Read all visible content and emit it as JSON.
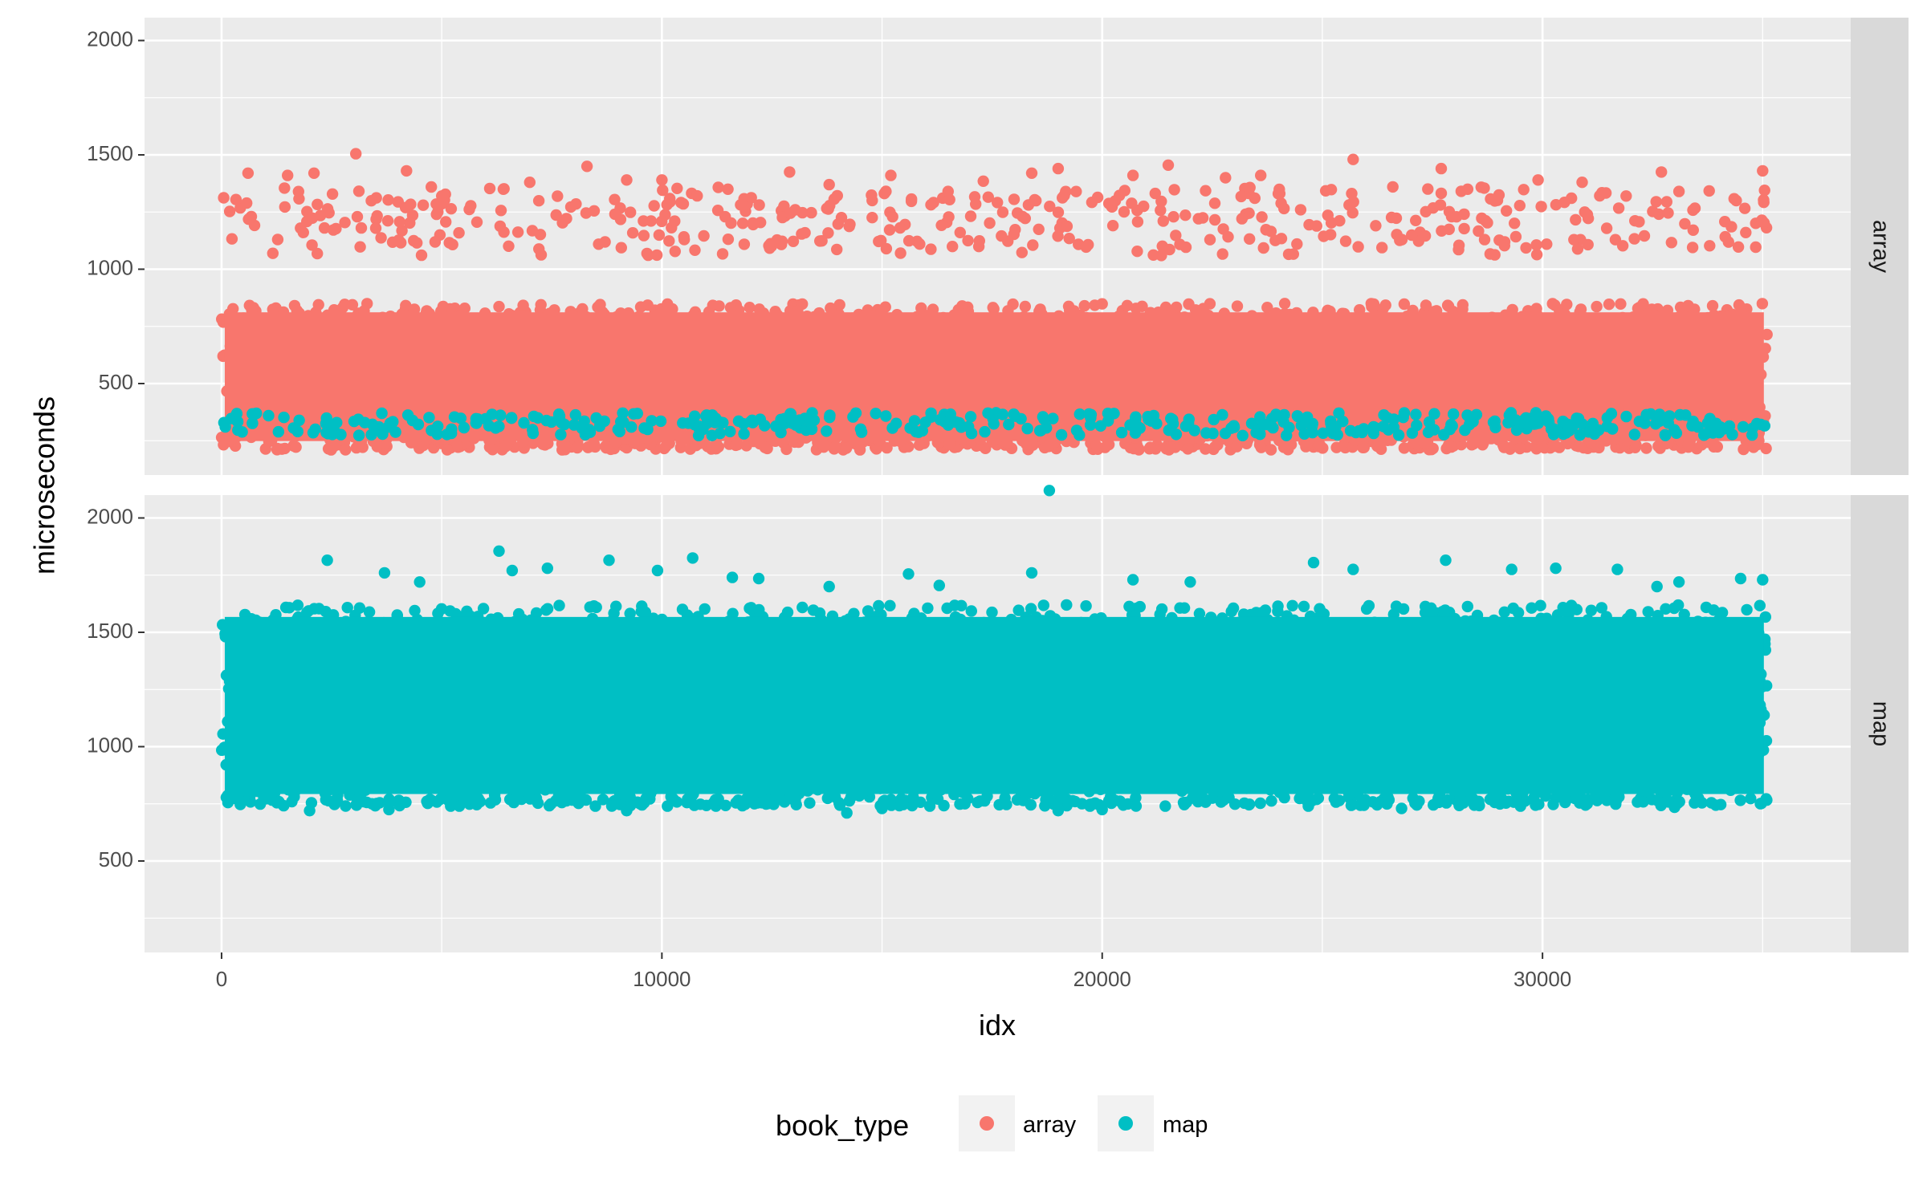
{
  "chart_data": {
    "type": "scatter",
    "facet_by": "book_type",
    "xlabel": "idx",
    "ylabel": "microseconds",
    "xlim": [
      -1750,
      37000
    ],
    "ylim": [
      100,
      2100
    ],
    "x_ticks": [
      0,
      10000,
      20000,
      30000
    ],
    "x_tick_labels": [
      "0",
      "10000",
      "20000",
      "30000"
    ],
    "y_ticks": [
      500,
      1000,
      1500,
      2000
    ],
    "y_tick_labels": [
      "500",
      "1000",
      "1500",
      "2000"
    ],
    "x_range_points": [
      0,
      35100
    ],
    "grid": true,
    "legend": {
      "title": "book_type",
      "placement": "bottom",
      "entries": [
        {
          "label": "array",
          "color": "#F8766D"
        },
        {
          "label": "map",
          "color": "#00BFC4"
        }
      ]
    },
    "panels": [
      {
        "strip": "array",
        "color": "#F8766D",
        "band_low": 210,
        "band_dense_high": 850,
        "band_sparse_high": 1150,
        "outliers": [
          [
            3050,
            1505
          ],
          [
            25700,
            1480
          ],
          [
            21500,
            1455
          ],
          [
            8300,
            1450
          ],
          [
            27700,
            1440
          ],
          [
            35000,
            1430
          ],
          [
            4200,
            1430
          ],
          [
            12900,
            1425
          ],
          [
            32700,
            1425
          ],
          [
            20700,
            1410
          ],
          [
            19000,
            1440
          ],
          [
            15200,
            1410
          ],
          [
            22800,
            1400
          ],
          [
            29900,
            1390
          ],
          [
            10000,
            1390
          ],
          [
            17300,
            1385
          ],
          [
            7000,
            1380
          ],
          [
            34400,
            1300
          ],
          [
            1500,
            1410
          ],
          [
            2100,
            1420
          ],
          [
            600,
            1420
          ],
          [
            18400,
            1420
          ],
          [
            23600,
            1410
          ],
          [
            30900,
            1380
          ],
          [
            13800,
            1370
          ],
          [
            9200,
            1390
          ],
          [
            11500,
            1350
          ],
          [
            26600,
            1360
          ],
          [
            28300,
            1350
          ],
          [
            33100,
            1340
          ],
          [
            6400,
            1350
          ],
          [
            16500,
            1340
          ],
          [
            24000,
            1330
          ],
          [
            31900,
            1320
          ],
          [
            5000,
            1320
          ]
        ]
      },
      {
        "strip": "map",
        "color": "#00BFC4",
        "band_low": 740,
        "band_dense_high": 1620,
        "band_sparse_high": 1720,
        "outliers": [
          [
            18800,
            2120
          ],
          [
            6300,
            1855
          ],
          [
            10700,
            1825
          ],
          [
            2400,
            1815
          ],
          [
            8800,
            1815
          ],
          [
            27800,
            1815
          ],
          [
            24800,
            1805
          ],
          [
            25700,
            1775
          ],
          [
            29300,
            1775
          ],
          [
            30300,
            1780
          ],
          [
            31700,
            1775
          ],
          [
            7400,
            1780
          ],
          [
            3700,
            1760
          ],
          [
            15600,
            1755
          ],
          [
            18400,
            1760
          ],
          [
            6600,
            1770
          ],
          [
            34500,
            1735
          ],
          [
            35000,
            1730
          ],
          [
            20700,
            1730
          ],
          [
            11600,
            1740
          ],
          [
            12200,
            1735
          ],
          [
            4500,
            1720
          ],
          [
            9900,
            1770
          ],
          [
            13800,
            1700
          ],
          [
            22000,
            1720
          ],
          [
            16300,
            1705
          ],
          [
            33100,
            1720
          ],
          [
            32600,
            1700
          ],
          [
            14200,
            710
          ],
          [
            19000,
            720
          ],
          [
            2000,
            720
          ],
          [
            3800,
            725
          ],
          [
            9200,
            720
          ],
          [
            15000,
            730
          ],
          [
            26800,
            730
          ],
          [
            33000,
            735
          ],
          [
            20000,
            725
          ],
          [
            5400,
            740
          ],
          [
            29500,
            740
          ]
        ]
      }
    ]
  }
}
